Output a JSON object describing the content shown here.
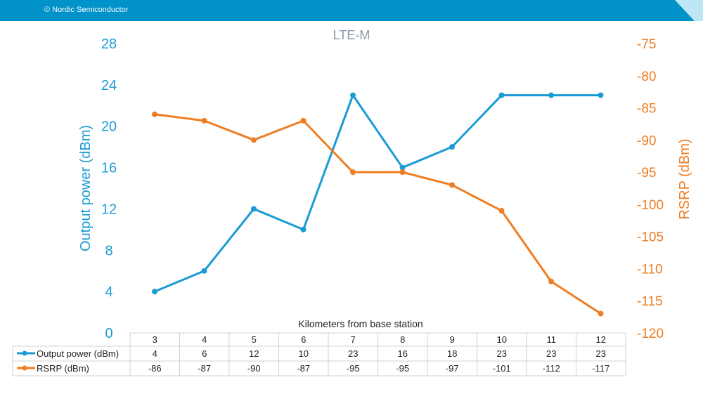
{
  "header": {
    "copyright": "© Nordic Semiconductor"
  },
  "colors": {
    "header_bar": "#0092c8",
    "series1": "#1a9bd6",
    "series2": "#ef7d22",
    "title": "#8a9aa8"
  },
  "chart_data": {
    "type": "line",
    "title": "LTE-M",
    "xlabel": "Kilometers from base station",
    "ylabel": "Output power (dBm)",
    "y2label": "RSRP (dBm)",
    "categories": [
      "3",
      "4",
      "5",
      "6",
      "7",
      "8",
      "9",
      "10",
      "11",
      "12"
    ],
    "ylim": [
      0,
      28
    ],
    "yticks": [
      "0",
      "4",
      "8",
      "12",
      "16",
      "20",
      "24",
      "28"
    ],
    "y2lim": [
      -120,
      -75
    ],
    "y2ticks": [
      "-75",
      "-80",
      "-85",
      "-90",
      "-95",
      "-100",
      "-105",
      "-110",
      "-115",
      "-120"
    ],
    "grid": false,
    "legend": "data-table",
    "series": [
      {
        "name": "Output power (dBm)",
        "axis": "left",
        "color": "#1a9bd6",
        "values": [
          4,
          6,
          12,
          10,
          23,
          16,
          18,
          23,
          23,
          23
        ]
      },
      {
        "name": "RSRP (dBm)",
        "axis": "right",
        "color": "#ef7d22",
        "values": [
          -86,
          -87,
          -90,
          -87,
          -95,
          -95,
          -97,
          -101,
          -112,
          -117
        ]
      }
    ]
  }
}
